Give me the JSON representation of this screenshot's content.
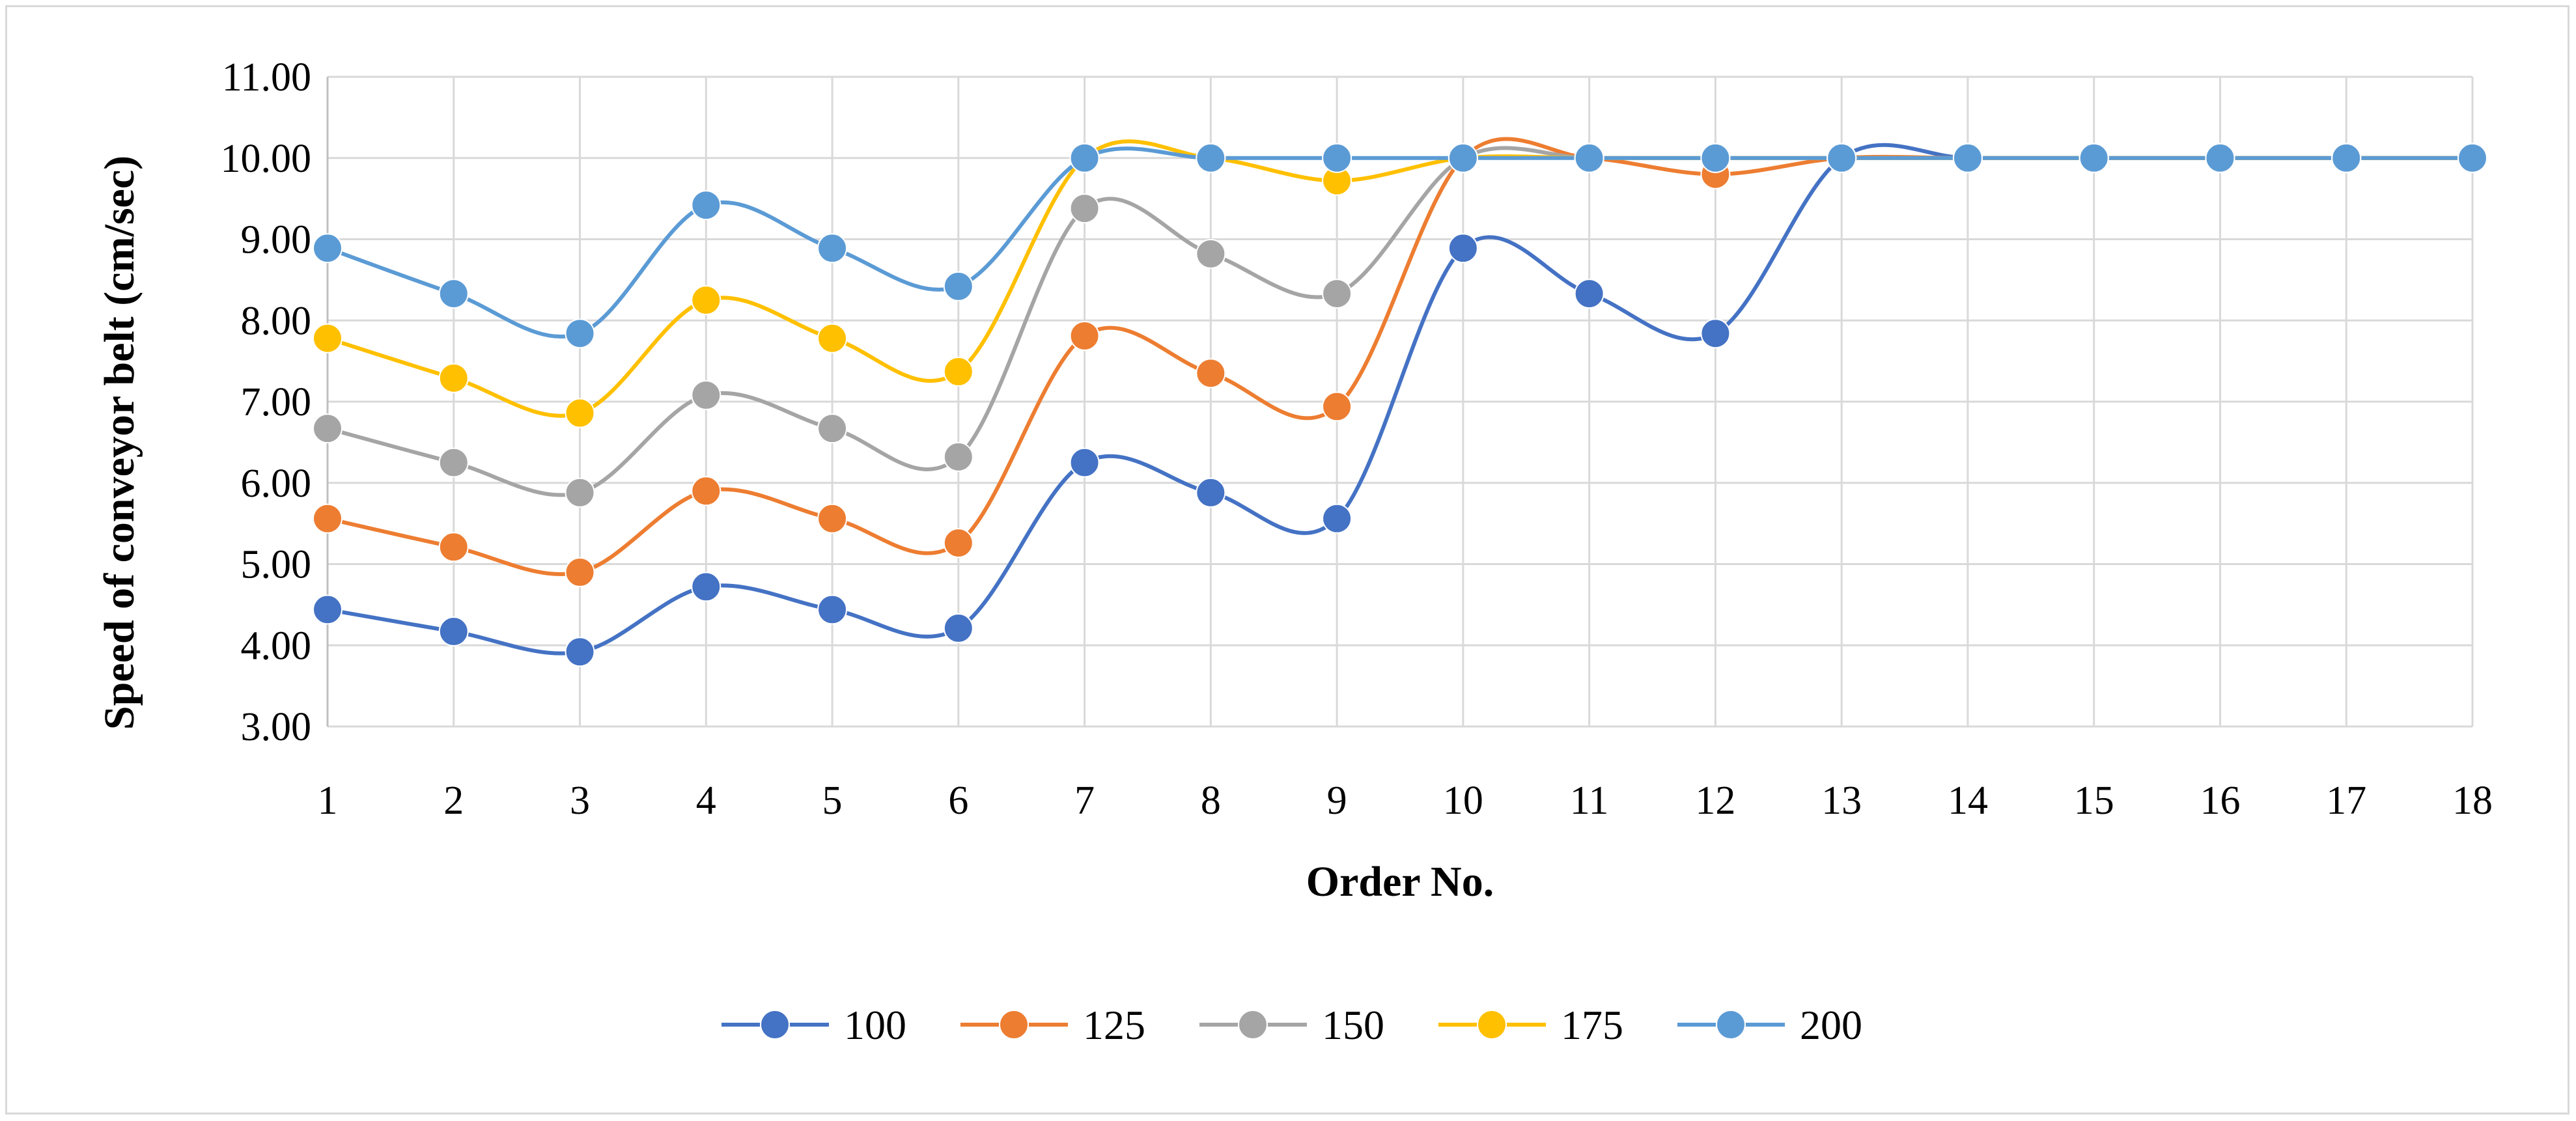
{
  "chart_data": {
    "type": "line",
    "title": "",
    "xlabel": "Order No.",
    "ylabel": "Speed of conveyor belt (cm/sec)",
    "categories": [
      "1",
      "2",
      "3",
      "4",
      "5",
      "6",
      "7",
      "8",
      "9",
      "10",
      "11",
      "12",
      "13",
      "14",
      "15",
      "16",
      "17",
      "18"
    ],
    "ylim": [
      3.0,
      11.0
    ],
    "yticks": [
      "3.00",
      "4.00",
      "5.00",
      "6.00",
      "7.00",
      "8.00",
      "9.00",
      "10.00",
      "11.00"
    ],
    "grid": true,
    "smooth": true,
    "legend_position": "bottom",
    "series": [
      {
        "name": "100",
        "color": "#4472C4",
        "values": [
          4.44,
          4.17,
          3.92,
          4.72,
          4.44,
          4.21,
          6.25,
          5.88,
          5.56,
          8.89,
          8.33,
          7.84,
          10.0,
          10.0,
          10.0,
          10.0,
          10.0,
          10.0
        ]
      },
      {
        "name": "125",
        "color": "#ED7D31",
        "values": [
          5.56,
          5.21,
          4.9,
          5.9,
          5.56,
          5.26,
          7.81,
          7.35,
          6.94,
          10.0,
          10.0,
          9.8,
          10.0,
          10.0,
          10.0,
          10.0,
          10.0,
          10.0
        ]
      },
      {
        "name": "150",
        "color": "#A5A5A5",
        "values": [
          6.67,
          6.25,
          5.88,
          7.08,
          6.67,
          6.32,
          9.38,
          8.82,
          8.33,
          10.0,
          10.0,
          10.0,
          10.0,
          10.0,
          10.0,
          10.0,
          10.0,
          10.0
        ]
      },
      {
        "name": "175",
        "color": "#FFC000",
        "values": [
          7.78,
          7.29,
          6.86,
          8.25,
          7.78,
          7.37,
          10.0,
          10.0,
          9.72,
          10.0,
          10.0,
          10.0,
          10.0,
          10.0,
          10.0,
          10.0,
          10.0,
          10.0
        ]
      },
      {
        "name": "200",
        "color": "#5B9BD5",
        "values": [
          8.89,
          8.33,
          7.84,
          9.42,
          8.89,
          8.42,
          10.0,
          10.0,
          10.0,
          10.0,
          10.0,
          10.0,
          10.0,
          10.0,
          10.0,
          10.0,
          10.0,
          10.0
        ]
      }
    ]
  }
}
